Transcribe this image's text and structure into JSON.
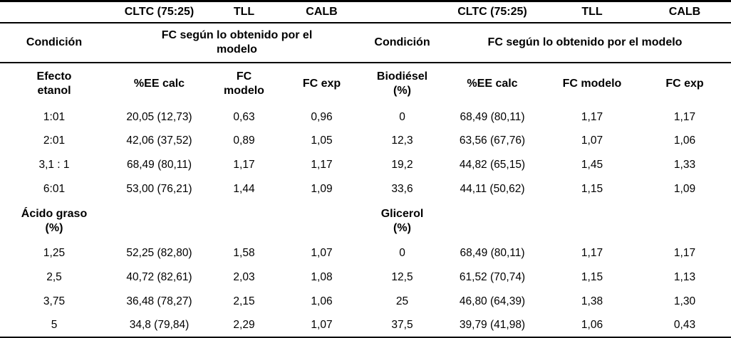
{
  "colors": {
    "background": "#ffffff",
    "text": "#000000",
    "rule": "#000000"
  },
  "table": {
    "left": {
      "enzymes": [
        "CLTC (75:25)",
        "TLL",
        "CALB"
      ],
      "condition_label": "Condición",
      "fc_header": "FC según lo obtenido por el modelo",
      "sub_headers": [
        "Efecto etanol",
        "%EE calc",
        "FC modelo",
        "FC exp"
      ]
    },
    "right": {
      "enzymes": [
        "CLTC (75:25)",
        "TLL",
        "CALB"
      ],
      "condition_label": "Condición",
      "fc_header": "FC según lo obtenido por el modelo",
      "sub_headers": [
        "Biodiésel (%)",
        "%EE calc",
        "FC modelo",
        "FC exp"
      ]
    },
    "rows": [
      {
        "type": "data",
        "cells": [
          "1:01",
          "20,05 (12,73)",
          "0,63",
          "0,96",
          "0",
          "68,49 (80,11)",
          "1,17",
          "1,17"
        ]
      },
      {
        "type": "data",
        "cells": [
          "2:01",
          "42,06 (37,52)",
          "0,89",
          "1,05",
          "12,3",
          "63,56 (67,76)",
          "1,07",
          "1,06"
        ]
      },
      {
        "type": "data",
        "cells": [
          "3,1 : 1",
          "68,49 (80,11)",
          "1,17",
          "1,17",
          "19,2",
          "44,82 (65,15)",
          "1,45",
          "1,33"
        ]
      },
      {
        "type": "data",
        "cells": [
          "6:01",
          "53,00 (76,21)",
          "1,44",
          "1,09",
          "33,6",
          "44,11 (50,62)",
          "1,15",
          "1,09"
        ]
      },
      {
        "type": "section",
        "cells": [
          "Ácido graso (%)",
          "",
          "",
          "",
          "Glicerol (%)",
          "",
          "",
          ""
        ]
      },
      {
        "type": "data",
        "cells": [
          "1,25",
          "52,25 (82,80)",
          "1,58",
          "1,07",
          "0",
          "68,49 (80,11)",
          "1,17",
          "1,17"
        ]
      },
      {
        "type": "data",
        "cells": [
          "2,5",
          "40,72 (82,61)",
          "2,03",
          "1,08",
          "12,5",
          "61,52 (70,74)",
          "1,15",
          "1,13"
        ]
      },
      {
        "type": "data",
        "cells": [
          "3,75",
          "36,48 (78,27)",
          "2,15",
          "1,06",
          "25",
          "46,80 (64,39)",
          "1,38",
          "1,30"
        ]
      },
      {
        "type": "data",
        "cells": [
          "5",
          "34,8 (79,84)",
          "2,29",
          "1,07",
          "37,5",
          "39,79 (41,98)",
          "1,06",
          "0,43"
        ]
      }
    ]
  }
}
